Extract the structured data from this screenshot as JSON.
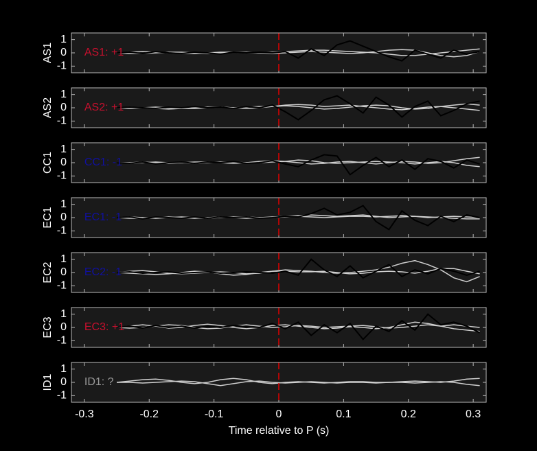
{
  "chart_data": [
    {
      "type": "line",
      "ylabel": "AS1",
      "annotation": "AS1: +1",
      "annotation_color": "#c8102e",
      "xlim": [
        -0.32,
        0.32
      ],
      "ylim": [
        -1.5,
        1.5
      ],
      "yticks": [
        -1,
        0,
        1
      ],
      "vline": 0,
      "vline_color": "#e00000",
      "x": [
        -0.25,
        -0.23,
        -0.21,
        -0.19,
        -0.17,
        -0.15,
        -0.13,
        -0.11,
        -0.09,
        -0.07,
        -0.05,
        -0.03,
        -0.01,
        0.01,
        0.03,
        0.05,
        0.07,
        0.09,
        0.11,
        0.13,
        0.15,
        0.17,
        0.19,
        0.21,
        0.23,
        0.25,
        0.27,
        0.29,
        0.31
      ],
      "series": [
        {
          "color": "#d0d0d0",
          "values": [
            0,
            0.05,
            0.1,
            0.05,
            0,
            -0.05,
            -0.05,
            0,
            0.05,
            0.05,
            0,
            0,
            0.05,
            0.1,
            0.15,
            0.2,
            0.2,
            0.15,
            0.1,
            0.05,
            0,
            -0.1,
            -0.2,
            -0.2,
            -0.1,
            0,
            0.1,
            0.2,
            0.3
          ]
        },
        {
          "color": "#d0d0d0",
          "values": [
            0,
            -0.05,
            -0.05,
            0,
            0.05,
            0.05,
            0,
            -0.05,
            0,
            0.05,
            0.05,
            0,
            -0.05,
            0,
            0.05,
            0.1,
            0.05,
            0,
            -0.05,
            0,
            0.1,
            0.2,
            0.25,
            0.2,
            0,
            -0.2,
            -0.3,
            -0.2,
            0.1
          ]
        },
        {
          "color": "#000000",
          "values": [
            0,
            0.05,
            -0.05,
            0.1,
            0,
            -0.05,
            0.05,
            0,
            -0.1,
            0.05,
            0,
            0.05,
            0,
            0.1,
            -0.4,
            0.3,
            -0.2,
            0.6,
            0.9,
            0.5,
            0.1,
            -0.3,
            -0.6,
            0.2,
            -0.1,
            -0.4,
            0.2,
            -0.1,
            0.1
          ]
        }
      ]
    },
    {
      "type": "line",
      "ylabel": "AS2",
      "annotation": "AS2: +1",
      "annotation_color": "#c8102e",
      "xlim": [
        -0.32,
        0.32
      ],
      "ylim": [
        -1.5,
        1.5
      ],
      "yticks": [
        -1,
        0,
        1
      ],
      "vline": 0,
      "vline_color": "#e00000",
      "x": [
        -0.25,
        -0.23,
        -0.21,
        -0.19,
        -0.17,
        -0.15,
        -0.13,
        -0.11,
        -0.09,
        -0.07,
        -0.05,
        -0.03,
        -0.01,
        0.01,
        0.03,
        0.05,
        0.07,
        0.09,
        0.11,
        0.13,
        0.15,
        0.17,
        0.19,
        0.21,
        0.23,
        0.25,
        0.27,
        0.29,
        0.31
      ],
      "series": [
        {
          "color": "#d0d0d0",
          "values": [
            0,
            0.05,
            0,
            -0.05,
            -0.1,
            -0.05,
            0,
            0.05,
            0.05,
            0,
            0.05,
            0.1,
            0.1,
            0.15,
            0.1,
            0,
            -0.1,
            -0.05,
            0.05,
            0.15,
            0.2,
            0.15,
            0,
            -0.1,
            -0.05,
            0.1,
            0.2,
            0.3,
            0.2
          ]
        },
        {
          "color": "#d0d0d0",
          "values": [
            0,
            -0.05,
            0,
            0.05,
            0,
            -0.05,
            -0.05,
            0,
            0.05,
            0,
            -0.05,
            0,
            0.1,
            0.2,
            0.25,
            0.2,
            0.1,
            0.15,
            0.2,
            0.1,
            0,
            -0.1,
            -0.15,
            -0.05,
            0.05,
            0.1,
            0,
            -0.1,
            -0.2
          ]
        },
        {
          "color": "#000000",
          "values": [
            0,
            0.05,
            0,
            -0.05,
            0.05,
            0,
            0.1,
            0,
            0.05,
            -0.05,
            0.1,
            0,
            0.2,
            -0.3,
            -0.9,
            -0.2,
            0.6,
            0.9,
            0.3,
            -0.4,
            0.8,
            0.2,
            -0.7,
            0.1,
            0.5,
            -0.6,
            -0.2,
            0.3,
            0.5
          ]
        }
      ]
    },
    {
      "type": "line",
      "ylabel": "CC1",
      "annotation": "CC1: -1",
      "annotation_color": "#1010a0",
      "xlim": [
        -0.32,
        0.32
      ],
      "ylim": [
        -1.5,
        1.5
      ],
      "yticks": [
        -1,
        0,
        1
      ],
      "vline": 0,
      "vline_color": "#e00000",
      "x": [
        -0.25,
        -0.23,
        -0.21,
        -0.19,
        -0.17,
        -0.15,
        -0.13,
        -0.11,
        -0.09,
        -0.07,
        -0.05,
        -0.03,
        -0.01,
        0.01,
        0.03,
        0.05,
        0.07,
        0.09,
        0.11,
        0.13,
        0.15,
        0.17,
        0.19,
        0.21,
        0.23,
        0.25,
        0.27,
        0.29,
        0.31
      ],
      "series": [
        {
          "color": "#d0d0d0",
          "values": [
            0,
            0,
            0.05,
            0,
            -0.05,
            0,
            0.05,
            0.05,
            0,
            -0.05,
            0,
            0.1,
            0.15,
            0.1,
            0,
            -0.1,
            -0.05,
            0.05,
            0.1,
            0,
            -0.1,
            0,
            0.1,
            0.05,
            -0.05,
            0,
            0.15,
            0.3,
            0.4
          ]
        },
        {
          "color": "#d0d0d0",
          "values": [
            0,
            -0.05,
            0,
            0.05,
            0,
            0,
            -0.05,
            0,
            0.05,
            0.05,
            0,
            0,
            0.05,
            0.1,
            0.2,
            0.15,
            0,
            -0.05,
            0,
            0.05,
            0.1,
            0.05,
            0,
            -0.1,
            0,
            0.1,
            0,
            -0.2,
            -0.3
          ]
        },
        {
          "color": "#000000",
          "values": [
            0,
            -0.05,
            0.05,
            -0.1,
            0,
            0.05,
            -0.05,
            0.05,
            0,
            0.1,
            -0.05,
            0,
            0.15,
            -0.1,
            -0.3,
            0.2,
            0.6,
            0.5,
            -0.9,
            -0.2,
            0.4,
            -0.3,
            0.2,
            -0.5,
            0.3,
            0.1,
            -0.4,
            0.2,
            -0.1
          ]
        }
      ]
    },
    {
      "type": "line",
      "ylabel": "EC1",
      "annotation": "EC1: -1",
      "annotation_color": "#1010a0",
      "xlim": [
        -0.32,
        0.32
      ],
      "ylim": [
        -1.5,
        1.5
      ],
      "yticks": [
        -1,
        0,
        1
      ],
      "vline": 0,
      "vline_color": "#e00000",
      "x": [
        -0.25,
        -0.23,
        -0.21,
        -0.19,
        -0.17,
        -0.15,
        -0.13,
        -0.11,
        -0.09,
        -0.07,
        -0.05,
        -0.03,
        -0.01,
        0.01,
        0.03,
        0.05,
        0.07,
        0.09,
        0.11,
        0.13,
        0.15,
        0.17,
        0.19,
        0.21,
        0.23,
        0.25,
        0.27,
        0.29,
        0.31
      ],
      "series": [
        {
          "color": "#d0d0d0",
          "values": [
            0,
            0.05,
            0,
            -0.05,
            0,
            0.05,
            0,
            -0.05,
            0,
            0.05,
            0.05,
            0,
            0.05,
            0.1,
            0.15,
            0.2,
            0.15,
            0.1,
            0.15,
            0.2,
            0.1,
            0,
            0.05,
            0.1,
            0.05,
            0,
            -0.05,
            -0.1,
            -0.1
          ]
        },
        {
          "color": "#d0d0d0",
          "values": [
            0,
            -0.05,
            -0.05,
            0,
            0.05,
            0,
            -0.05,
            0,
            0.05,
            0,
            -0.05,
            0,
            0,
            0.05,
            0.1,
            0.05,
            0,
            0.05,
            0.1,
            0.1,
            0.05,
            0.1,
            0.15,
            0.1,
            0,
            0.05,
            0.1,
            0.05,
            0
          ]
        },
        {
          "color": "#000000",
          "values": [
            0,
            0.05,
            -0.1,
            0.05,
            0,
            -0.05,
            0.05,
            -0.05,
            0.05,
            0,
            0.05,
            -0.05,
            0,
            0.1,
            0.05,
            0.3,
            0.7,
            0.2,
            0.4,
            0.9,
            -0.3,
            -0.9,
            0.5,
            -0.2,
            -0.6,
            0.1,
            -0.3,
            0.2,
            0
          ]
        }
      ]
    },
    {
      "type": "line",
      "ylabel": "EC2",
      "annotation": "EC2: -1",
      "annotation_color": "#1010a0",
      "xlim": [
        -0.32,
        0.32
      ],
      "ylim": [
        -1.5,
        1.5
      ],
      "yticks": [
        -1,
        0,
        1
      ],
      "vline": 0,
      "vline_color": "#e00000",
      "x": [
        -0.25,
        -0.23,
        -0.21,
        -0.19,
        -0.17,
        -0.15,
        -0.13,
        -0.11,
        -0.09,
        -0.07,
        -0.05,
        -0.03,
        -0.01,
        0.01,
        0.03,
        0.05,
        0.07,
        0.09,
        0.11,
        0.13,
        0.15,
        0.17,
        0.19,
        0.21,
        0.23,
        0.25,
        0.27,
        0.29,
        0.31
      ],
      "series": [
        {
          "color": "#d0d0d0",
          "values": [
            0,
            0.1,
            0.15,
            0.05,
            -0.05,
            -0.1,
            -0.05,
            0,
            0.05,
            0,
            -0.1,
            -0.05,
            0.1,
            0.2,
            0.15,
            0.1,
            0,
            -0.05,
            0,
            0.1,
            0.2,
            0.4,
            0.7,
            0.9,
            0.6,
            0.2,
            -0.4,
            -0.7,
            -0.3
          ]
        },
        {
          "color": "#d0d0d0",
          "values": [
            0,
            -0.05,
            -0.1,
            -0.15,
            -0.1,
            0,
            0.1,
            0.05,
            -0.1,
            -0.2,
            -0.15,
            0,
            0.1,
            0.1,
            0.05,
            0.05,
            0.1,
            0,
            -0.1,
            -0.05,
            0.05,
            0.1,
            0.05,
            -0.05,
            0.1,
            0.3,
            0.3,
            0.1,
            -0.1
          ]
        },
        {
          "color": "#000000",
          "values": [
            0,
            0.05,
            -0.05,
            0,
            0.05,
            -0.05,
            0,
            0.05,
            -0.05,
            0,
            0.05,
            0,
            -0.05,
            0.1,
            -0.2,
            1,
            0.2,
            -0.3,
            0.5,
            -0.4,
            0.1,
            0.6,
            -0.3,
            0.2,
            -0.1,
            0.3,
            0.1,
            -0.2,
            0.1
          ]
        }
      ]
    },
    {
      "type": "line",
      "ylabel": "EC3",
      "annotation": "EC3: +1",
      "annotation_color": "#c8102e",
      "xlim": [
        -0.32,
        0.32
      ],
      "ylim": [
        -1.5,
        1.5
      ],
      "yticks": [
        -1,
        0,
        1
      ],
      "vline": 0,
      "vline_color": "#e00000",
      "x": [
        -0.25,
        -0.23,
        -0.21,
        -0.19,
        -0.17,
        -0.15,
        -0.13,
        -0.11,
        -0.09,
        -0.07,
        -0.05,
        -0.03,
        -0.01,
        0.01,
        0.03,
        0.05,
        0.07,
        0.09,
        0.11,
        0.13,
        0.15,
        0.17,
        0.19,
        0.21,
        0.23,
        0.25,
        0.27,
        0.29,
        0.31
      ],
      "series": [
        {
          "color": "#d0d0d0",
          "values": [
            0,
            0.1,
            0.2,
            0.1,
            -0.05,
            0,
            0.15,
            0.25,
            0.15,
            0,
            -0.1,
            0,
            0.15,
            0.2,
            0.1,
            0,
            -0.1,
            -0.05,
            0.05,
            0,
            -0.1,
            0,
            0.2,
            0.4,
            0.3,
            0.1,
            -0.1,
            -0.2,
            -0.3
          ]
        },
        {
          "color": "#d0d0d0",
          "values": [
            0,
            -0.05,
            0,
            0.1,
            0.2,
            0.15,
            0,
            -0.1,
            -0.05,
            0.1,
            0.2,
            0.1,
            0,
            0.05,
            0.15,
            0.1,
            0,
            0.05,
            0.1,
            0.15,
            0.05,
            -0.05,
            0,
            0.1,
            0.2,
            0.1,
            0.2,
            0.1,
            0
          ]
        },
        {
          "color": "#000000",
          "values": [
            0,
            0.1,
            -0.05,
            0.15,
            0,
            0.1,
            -0.05,
            0.1,
            0,
            0.15,
            0.05,
            0,
            0.3,
            -0.1,
            0.4,
            -0.6,
            0.2,
            -0.4,
            0.3,
            -0.9,
            0.1,
            -0.3,
            0.5,
            -0.2,
            1,
            0.2,
            0.4,
            0.1,
            -0.4
          ]
        }
      ]
    },
    {
      "type": "line",
      "ylabel": "ID1",
      "annotation": "ID1: ?",
      "annotation_color": "#9a9a9a",
      "xlim": [
        -0.32,
        0.32
      ],
      "ylim": [
        -1.5,
        1.5
      ],
      "yticks": [
        -1,
        0,
        1
      ],
      "vline": 0,
      "vline_color": "#e00000",
      "xticks": [
        -0.3,
        -0.2,
        -0.1,
        0,
        0.1,
        0.2,
        0.3
      ],
      "xlabel": "Time relative to P (s)",
      "x": [
        -0.25,
        -0.23,
        -0.21,
        -0.19,
        -0.17,
        -0.15,
        -0.13,
        -0.11,
        -0.09,
        -0.07,
        -0.05,
        -0.03,
        -0.01,
        0.01,
        0.03,
        0.05,
        0.07,
        0.09,
        0.11,
        0.13,
        0.15,
        0.17,
        0.19,
        0.21,
        0.23,
        0.25,
        0.27,
        0.29,
        0.31
      ],
      "series": [
        {
          "color": "#d0d0d0",
          "values": [
            0,
            0.1,
            0.2,
            0.25,
            0.15,
            0,
            -0.1,
            0,
            0.2,
            0.3,
            0.2,
            0,
            -0.1,
            0,
            0.05,
            0,
            -0.05,
            0,
            0.05,
            0.05,
            0,
            0,
            0.05,
            0.1,
            0.05,
            0,
            0.1,
            0.25,
            0.3
          ]
        },
        {
          "color": "#d0d0d0",
          "values": [
            0,
            0,
            -0.05,
            0,
            0.05,
            0.1,
            0.05,
            -0.1,
            -0.25,
            -0.1,
            0.05,
            0.1,
            0,
            -0.05,
            0,
            0.05,
            0,
            -0.05,
            0,
            0,
            -0.05,
            0,
            0,
            -0.05,
            0,
            0.05,
            0,
            -0.15,
            -0.25
          ]
        }
      ]
    }
  ]
}
